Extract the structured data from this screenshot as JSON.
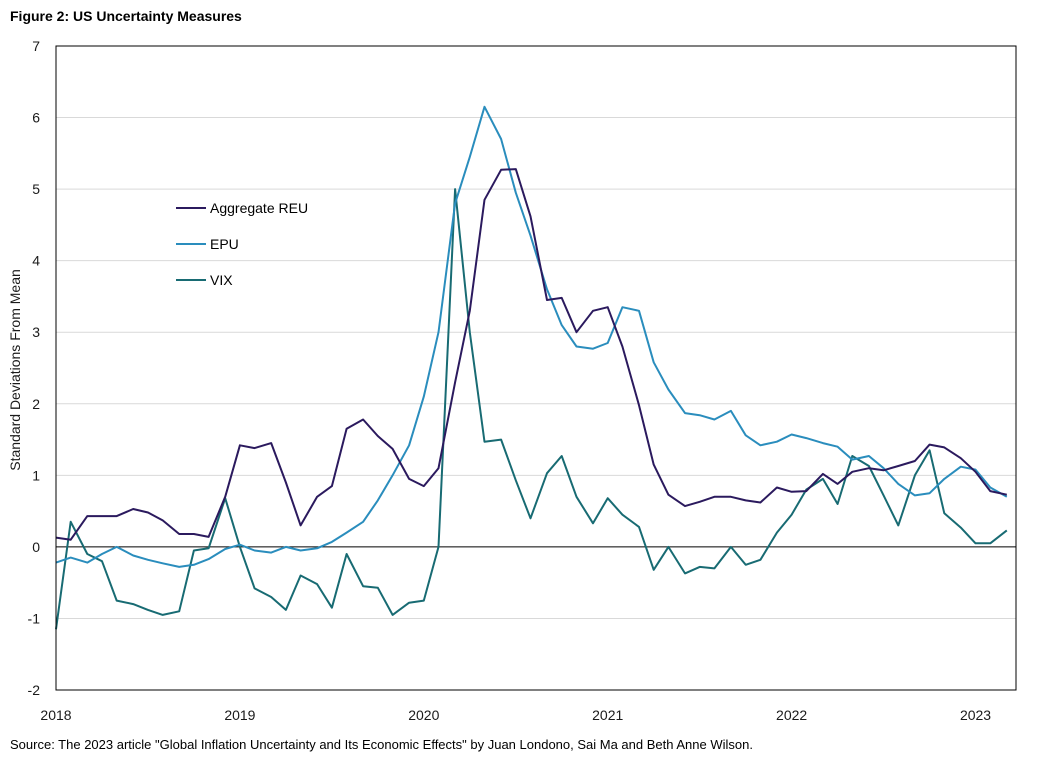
{
  "figure": {
    "title": "Figure 2: US Uncertainty Measures",
    "source": "Source: The 2023  article \"Global Inflation Uncertainty and Its Economic Effects\" by Juan Londono, Sai Ma and Beth Anne Wilson."
  },
  "chart_data": {
    "type": "line",
    "title": "Figure 2: US Uncertainty Measures",
    "xlabel": "",
    "ylabel": "Standard Deviations From Mean",
    "xlim": [
      2018.0,
      2023.22
    ],
    "ylim": [
      -2,
      7
    ],
    "yticks": [
      -2,
      -1,
      0,
      1,
      2,
      3,
      4,
      5,
      6,
      7
    ],
    "xticks": [
      {
        "value": 2018,
        "label": "2018"
      },
      {
        "value": 2019,
        "label": "2019"
      },
      {
        "value": 2020,
        "label": "2020"
      },
      {
        "value": 2021,
        "label": "2021"
      },
      {
        "value": 2022,
        "label": "2022"
      },
      {
        "value": 2023,
        "label": "2023"
      }
    ],
    "grid": "horizontal",
    "legend_position": "upper-left",
    "colors": {
      "Aggregate REU": "#2b1a5e",
      "EPU": "#2a8dbd",
      "VIX": "#186b73",
      "grid": "#d9d9d9",
      "zero_line": "#000000",
      "frame": "#000000"
    },
    "series": [
      {
        "name": "Aggregate REU",
        "points": [
          [
            2018.0,
            0.13
          ],
          [
            2018.08,
            0.1
          ],
          [
            2018.17,
            0.43
          ],
          [
            2018.25,
            0.43
          ],
          [
            2018.33,
            0.43
          ],
          [
            2018.42,
            0.53
          ],
          [
            2018.5,
            0.48
          ],
          [
            2018.58,
            0.37
          ],
          [
            2018.67,
            0.18
          ],
          [
            2018.75,
            0.18
          ],
          [
            2018.83,
            0.14
          ],
          [
            2018.92,
            0.7
          ],
          [
            2019.0,
            1.42
          ],
          [
            2019.08,
            1.38
          ],
          [
            2019.17,
            1.45
          ],
          [
            2019.25,
            0.9
          ],
          [
            2019.33,
            0.3
          ],
          [
            2019.42,
            0.7
          ],
          [
            2019.5,
            0.85
          ],
          [
            2019.58,
            1.65
          ],
          [
            2019.67,
            1.78
          ],
          [
            2019.75,
            1.55
          ],
          [
            2019.83,
            1.37
          ],
          [
            2019.92,
            0.95
          ],
          [
            2020.0,
            0.85
          ],
          [
            2020.08,
            1.1
          ],
          [
            2020.17,
            2.3
          ],
          [
            2020.25,
            3.3
          ],
          [
            2020.33,
            4.85
          ],
          [
            2020.42,
            5.27
          ],
          [
            2020.5,
            5.28
          ],
          [
            2020.58,
            4.62
          ],
          [
            2020.67,
            3.45
          ],
          [
            2020.75,
            3.48
          ],
          [
            2020.83,
            3.0
          ],
          [
            2020.92,
            3.3
          ],
          [
            2021.0,
            3.35
          ],
          [
            2021.08,
            2.8
          ],
          [
            2021.17,
            1.98
          ],
          [
            2021.25,
            1.15
          ],
          [
            2021.33,
            0.73
          ],
          [
            2021.42,
            0.57
          ],
          [
            2021.5,
            0.63
          ],
          [
            2021.58,
            0.7
          ],
          [
            2021.67,
            0.7
          ],
          [
            2021.75,
            0.65
          ],
          [
            2021.83,
            0.62
          ],
          [
            2021.92,
            0.83
          ],
          [
            2022.0,
            0.77
          ],
          [
            2022.08,
            0.78
          ],
          [
            2022.17,
            1.02
          ],
          [
            2022.25,
            0.88
          ],
          [
            2022.33,
            1.05
          ],
          [
            2022.42,
            1.1
          ],
          [
            2022.5,
            1.07
          ],
          [
            2022.58,
            1.13
          ],
          [
            2022.67,
            1.2
          ],
          [
            2022.75,
            1.43
          ],
          [
            2022.83,
            1.39
          ],
          [
            2022.92,
            1.24
          ],
          [
            2023.0,
            1.05
          ],
          [
            2023.08,
            0.78
          ],
          [
            2023.17,
            0.73
          ]
        ]
      },
      {
        "name": "EPU",
        "points": [
          [
            2018.0,
            -0.22
          ],
          [
            2018.08,
            -0.15
          ],
          [
            2018.17,
            -0.22
          ],
          [
            2018.25,
            -0.1
          ],
          [
            2018.33,
            0.0
          ],
          [
            2018.42,
            -0.12
          ],
          [
            2018.5,
            -0.18
          ],
          [
            2018.58,
            -0.23
          ],
          [
            2018.67,
            -0.28
          ],
          [
            2018.75,
            -0.25
          ],
          [
            2018.83,
            -0.17
          ],
          [
            2018.92,
            -0.03
          ],
          [
            2019.0,
            0.03
          ],
          [
            2019.08,
            -0.05
          ],
          [
            2019.17,
            -0.08
          ],
          [
            2019.25,
            0.0
          ],
          [
            2019.33,
            -0.05
          ],
          [
            2019.42,
            -0.02
          ],
          [
            2019.5,
            0.07
          ],
          [
            2019.58,
            0.2
          ],
          [
            2019.67,
            0.35
          ],
          [
            2019.75,
            0.65
          ],
          [
            2019.83,
            1.0
          ],
          [
            2019.92,
            1.42
          ],
          [
            2020.0,
            2.1
          ],
          [
            2020.08,
            3.0
          ],
          [
            2020.17,
            4.8
          ],
          [
            2020.25,
            5.45
          ],
          [
            2020.33,
            6.15
          ],
          [
            2020.42,
            5.7
          ],
          [
            2020.5,
            4.95
          ],
          [
            2020.58,
            4.35
          ],
          [
            2020.67,
            3.6
          ],
          [
            2020.75,
            3.1
          ],
          [
            2020.83,
            2.8
          ],
          [
            2020.92,
            2.77
          ],
          [
            2021.0,
            2.85
          ],
          [
            2021.08,
            3.35
          ],
          [
            2021.17,
            3.3
          ],
          [
            2021.25,
            2.58
          ],
          [
            2021.33,
            2.2
          ],
          [
            2021.42,
            1.87
          ],
          [
            2021.5,
            1.84
          ],
          [
            2021.58,
            1.78
          ],
          [
            2021.67,
            1.9
          ],
          [
            2021.75,
            1.56
          ],
          [
            2021.83,
            1.42
          ],
          [
            2021.92,
            1.47
          ],
          [
            2022.0,
            1.57
          ],
          [
            2022.08,
            1.52
          ],
          [
            2022.17,
            1.45
          ],
          [
            2022.25,
            1.4
          ],
          [
            2022.33,
            1.22
          ],
          [
            2022.42,
            1.27
          ],
          [
            2022.5,
            1.1
          ],
          [
            2022.58,
            0.88
          ],
          [
            2022.67,
            0.72
          ],
          [
            2022.75,
            0.75
          ],
          [
            2022.83,
            0.95
          ],
          [
            2022.92,
            1.12
          ],
          [
            2023.0,
            1.08
          ],
          [
            2023.08,
            0.83
          ],
          [
            2023.17,
            0.7
          ]
        ]
      },
      {
        "name": "VIX",
        "points": [
          [
            2018.0,
            -1.15
          ],
          [
            2018.08,
            0.35
          ],
          [
            2018.17,
            -0.1
          ],
          [
            2018.25,
            -0.2
          ],
          [
            2018.33,
            -0.75
          ],
          [
            2018.42,
            -0.8
          ],
          [
            2018.5,
            -0.88
          ],
          [
            2018.58,
            -0.95
          ],
          [
            2018.67,
            -0.9
          ],
          [
            2018.75,
            -0.05
          ],
          [
            2018.83,
            -0.02
          ],
          [
            2018.92,
            0.68
          ],
          [
            2019.0,
            0.0
          ],
          [
            2019.08,
            -0.58
          ],
          [
            2019.17,
            -0.7
          ],
          [
            2019.25,
            -0.88
          ],
          [
            2019.33,
            -0.4
          ],
          [
            2019.42,
            -0.52
          ],
          [
            2019.5,
            -0.85
          ],
          [
            2019.58,
            -0.1
          ],
          [
            2019.67,
            -0.55
          ],
          [
            2019.75,
            -0.57
          ],
          [
            2019.83,
            -0.95
          ],
          [
            2019.92,
            -0.78
          ],
          [
            2020.0,
            -0.75
          ],
          [
            2020.08,
            0.0
          ],
          [
            2020.17,
            5.0
          ],
          [
            2020.25,
            3.0
          ],
          [
            2020.33,
            1.47
          ],
          [
            2020.42,
            1.5
          ],
          [
            2020.5,
            0.93
          ],
          [
            2020.58,
            0.4
          ],
          [
            2020.67,
            1.03
          ],
          [
            2020.75,
            1.27
          ],
          [
            2020.83,
            0.7
          ],
          [
            2020.92,
            0.33
          ],
          [
            2021.0,
            0.68
          ],
          [
            2021.08,
            0.45
          ],
          [
            2021.17,
            0.28
          ],
          [
            2021.25,
            -0.32
          ],
          [
            2021.33,
            0.0
          ],
          [
            2021.42,
            -0.37
          ],
          [
            2021.5,
            -0.28
          ],
          [
            2021.58,
            -0.3
          ],
          [
            2021.67,
            0.0
          ],
          [
            2021.75,
            -0.25
          ],
          [
            2021.83,
            -0.18
          ],
          [
            2021.92,
            0.2
          ],
          [
            2022.0,
            0.45
          ],
          [
            2022.08,
            0.8
          ],
          [
            2022.17,
            0.95
          ],
          [
            2022.25,
            0.6
          ],
          [
            2022.33,
            1.27
          ],
          [
            2022.42,
            1.13
          ],
          [
            2022.5,
            0.72
          ],
          [
            2022.58,
            0.3
          ],
          [
            2022.67,
            1.0
          ],
          [
            2022.75,
            1.35
          ],
          [
            2022.83,
            0.47
          ],
          [
            2022.92,
            0.27
          ],
          [
            2023.0,
            0.05
          ],
          [
            2023.08,
            0.05
          ],
          [
            2023.17,
            0.23
          ]
        ]
      }
    ],
    "legend": [
      "Aggregate REU",
      "EPU",
      "VIX"
    ]
  }
}
